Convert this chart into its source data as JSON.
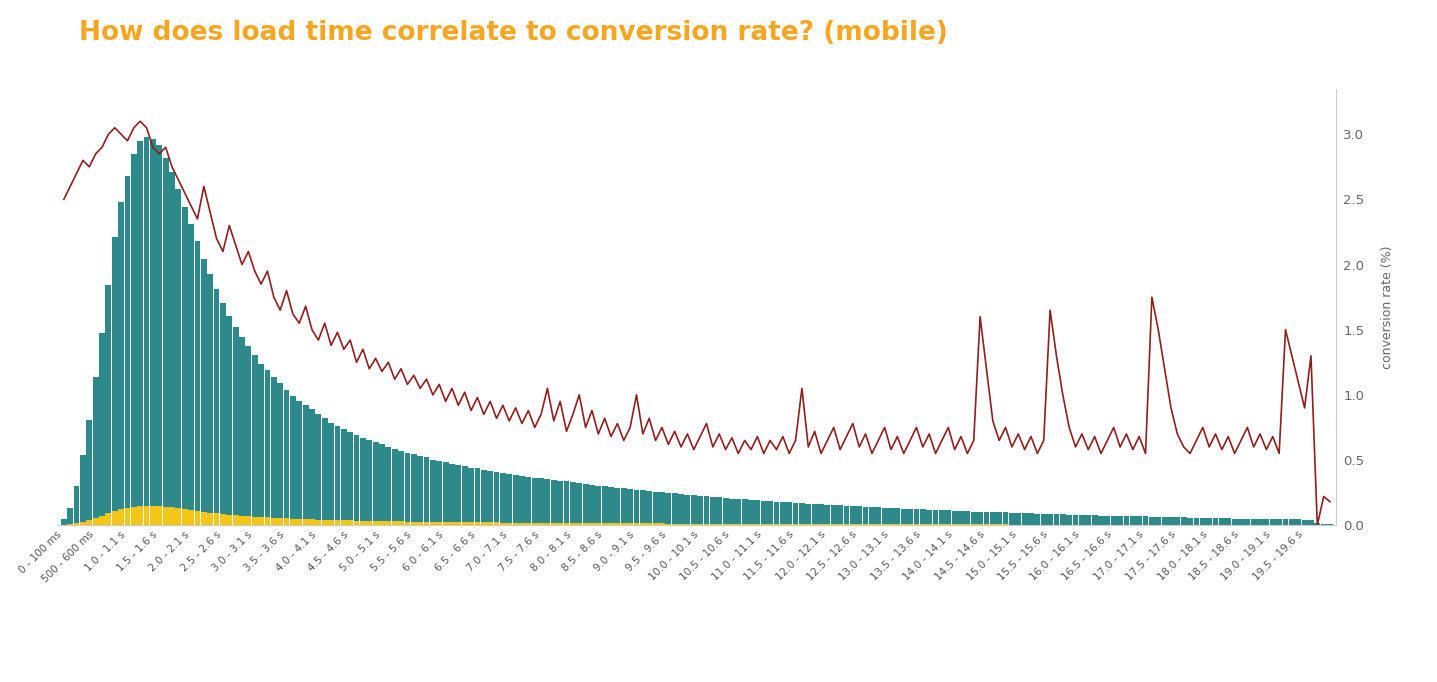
{
  "title": "How does load time correlate to conversion rate? (mobile)",
  "title_color": "#F5A623",
  "bar_color_teal": "#2E8A8A",
  "bar_color_yellow": "#F5C518",
  "line_color": "#8B2020",
  "ylabel_right": "conversion rate (%)",
  "background_color": "#ffffff",
  "ylim_bars": [
    0,
    100
  ],
  "ylim_conv": [
    0,
    3.35
  ],
  "yticks_conv": [
    0,
    0.5,
    1.0,
    1.5,
    2.0,
    2.5,
    3.0
  ],
  "bar_heights_teal": [
    1.5,
    4.0,
    9.0,
    16.0,
    24.0,
    34.0,
    44.0,
    55.0,
    66.0,
    74.0,
    80.0,
    85.0,
    88.0,
    89.0,
    88.5,
    87.0,
    84.0,
    81.0,
    77.0,
    73.0,
    69.0,
    65.0,
    61.0,
    57.5,
    54.0,
    51.0,
    48.0,
    45.5,
    43.0,
    41.0,
    39.0,
    37.0,
    35.5,
    34.0,
    32.5,
    31.0,
    29.5,
    28.5,
    27.5,
    26.5,
    25.5,
    24.5,
    23.5,
    22.8,
    22.0,
    21.3,
    20.7,
    20.0,
    19.5,
    19.0,
    18.5,
    18.0,
    17.5,
    17.0,
    16.5,
    16.2,
    15.8,
    15.5,
    15.0,
    14.7,
    14.4,
    14.1,
    13.8,
    13.5,
    13.2,
    13.0,
    12.7,
    12.5,
    12.2,
    12.0,
    11.8,
    11.5,
    11.3,
    11.1,
    10.9,
    10.7,
    10.5,
    10.3,
    10.1,
    10.0,
    9.8,
    9.6,
    9.4,
    9.2,
    9.0,
    8.9,
    8.7,
    8.6,
    8.4,
    8.3,
    8.1,
    8.0,
    7.8,
    7.7,
    7.5,
    7.4,
    7.3,
    7.1,
    7.0,
    6.9,
    6.7,
    6.6,
    6.5,
    6.4,
    6.3,
    6.1,
    6.0,
    5.9,
    5.8,
    5.7,
    5.6,
    5.5,
    5.4,
    5.3,
    5.2,
    5.1,
    5.0,
    4.9,
    4.8,
    4.8,
    4.7,
    4.6,
    4.5,
    4.4,
    4.4,
    4.3,
    4.2,
    4.1,
    4.1,
    4.0,
    3.9,
    3.9,
    3.8,
    3.7,
    3.7,
    3.6,
    3.5,
    3.5,
    3.4,
    3.4,
    3.3,
    3.2,
    3.2,
    3.1,
    3.1,
    3.0,
    3.0,
    2.9,
    2.9,
    2.8,
    2.8,
    2.7,
    2.7,
    2.6,
    2.6,
    2.5,
    2.5,
    2.5,
    2.4,
    2.4,
    2.3,
    2.3,
    2.3,
    2.2,
    2.2,
    2.1,
    2.1,
    2.1,
    2.0,
    2.0,
    2.0,
    1.9,
    1.9,
    1.9,
    1.8,
    1.8,
    1.8,
    1.7,
    1.7,
    1.7,
    1.7,
    1.6,
    1.6,
    1.6,
    1.5,
    1.5,
    1.5,
    1.5,
    1.4,
    1.4,
    1.4,
    1.4,
    1.3,
    1.3,
    1.3,
    1.2,
    1.2,
    0.5,
    0.3,
    0.2
  ],
  "bar_heights_yellow": [
    0.08,
    0.2,
    0.45,
    0.8,
    1.2,
    1.7,
    2.2,
    2.75,
    3.3,
    3.7,
    4.0,
    4.25,
    4.4,
    4.45,
    4.42,
    4.35,
    4.2,
    4.05,
    3.85,
    3.65,
    3.45,
    3.25,
    3.05,
    2.88,
    2.7,
    2.55,
    2.4,
    2.28,
    2.15,
    2.05,
    1.95,
    1.85,
    1.78,
    1.7,
    1.63,
    1.55,
    1.48,
    1.43,
    1.38,
    1.33,
    1.28,
    1.23,
    1.18,
    1.14,
    1.1,
    1.07,
    1.04,
    1.0,
    0.98,
    0.95,
    0.93,
    0.9,
    0.88,
    0.85,
    0.83,
    0.81,
    0.79,
    0.78,
    0.75,
    0.74,
    0.72,
    0.71,
    0.69,
    0.68,
    0.66,
    0.65,
    0.64,
    0.63,
    0.61,
    0.6,
    0.59,
    0.58,
    0.57,
    0.56,
    0.55,
    0.54,
    0.53,
    0.52,
    0.51,
    0.5,
    0.49,
    0.48,
    0.47,
    0.46,
    0.45,
    0.45,
    0.44,
    0.43,
    0.42,
    0.42,
    0.41,
    0.4,
    0.39,
    0.39,
    0.38,
    0.37,
    0.37,
    0.36,
    0.35,
    0.35,
    0.34,
    0.33,
    0.33,
    0.32,
    0.32,
    0.31,
    0.3,
    0.3,
    0.29,
    0.29,
    0.28,
    0.28,
    0.27,
    0.27,
    0.26,
    0.26,
    0.25,
    0.25,
    0.24,
    0.24,
    0.24,
    0.23,
    0.23,
    0.22,
    0.22,
    0.22,
    0.21,
    0.21,
    0.21,
    0.2,
    0.2,
    0.2,
    0.19,
    0.19,
    0.19,
    0.18,
    0.18,
    0.18,
    0.17,
    0.17,
    0.17,
    0.16,
    0.16,
    0.16,
    0.16,
    0.15,
    0.15,
    0.15,
    0.15,
    0.14,
    0.14,
    0.14,
    0.14,
    0.13,
    0.13,
    0.13,
    0.13,
    0.13,
    0.12,
    0.12,
    0.12,
    0.12,
    0.12,
    0.11,
    0.11,
    0.11,
    0.11,
    0.11,
    0.1,
    0.1,
    0.1,
    0.1,
    0.1,
    0.1,
    0.09,
    0.09,
    0.09,
    0.09,
    0.09,
    0.09,
    0.09,
    0.08,
    0.08,
    0.08,
    0.08,
    0.08,
    0.08,
    0.08,
    0.07,
    0.07,
    0.07,
    0.07,
    0.07,
    0.07,
    0.07,
    0.06,
    0.06,
    0.03,
    0.02,
    0.01
  ],
  "conversion_rate": [
    2.5,
    2.6,
    2.7,
    2.8,
    2.75,
    2.85,
    2.9,
    3.0,
    3.05,
    3.0,
    2.95,
    3.05,
    3.1,
    3.05,
    2.9,
    2.85,
    2.9,
    2.75,
    2.65,
    2.55,
    2.45,
    2.35,
    2.6,
    2.4,
    2.2,
    2.1,
    2.3,
    2.15,
    2.0,
    2.1,
    1.95,
    1.85,
    1.95,
    1.75,
    1.65,
    1.8,
    1.62,
    1.55,
    1.68,
    1.5,
    1.42,
    1.55,
    1.38,
    1.48,
    1.35,
    1.42,
    1.25,
    1.35,
    1.2,
    1.28,
    1.18,
    1.25,
    1.12,
    1.2,
    1.08,
    1.15,
    1.05,
    1.12,
    1.0,
    1.08,
    0.95,
    1.05,
    0.92,
    1.02,
    0.88,
    0.98,
    0.85,
    0.95,
    0.82,
    0.92,
    0.8,
    0.9,
    0.78,
    0.88,
    0.75,
    0.85,
    1.05,
    0.8,
    0.95,
    0.72,
    0.85,
    1.0,
    0.75,
    0.88,
    0.7,
    0.82,
    0.68,
    0.78,
    0.65,
    0.75,
    1.0,
    0.7,
    0.82,
    0.65,
    0.75,
    0.62,
    0.72,
    0.6,
    0.7,
    0.58,
    0.68,
    0.78,
    0.6,
    0.7,
    0.58,
    0.67,
    0.55,
    0.65,
    0.58,
    0.68,
    0.55,
    0.65,
    0.58,
    0.68,
    0.55,
    0.65,
    1.05,
    0.6,
    0.72,
    0.55,
    0.65,
    0.75,
    0.58,
    0.68,
    0.78,
    0.6,
    0.7,
    0.55,
    0.65,
    0.75,
    0.58,
    0.68,
    0.55,
    0.65,
    0.75,
    0.6,
    0.7,
    0.55,
    0.65,
    0.75,
    0.58,
    0.68,
    0.55,
    0.65,
    1.6,
    1.2,
    0.8,
    0.65,
    0.75,
    0.6,
    0.7,
    0.58,
    0.68,
    0.55,
    0.65,
    1.65,
    1.3,
    1.0,
    0.75,
    0.6,
    0.7,
    0.58,
    0.68,
    0.55,
    0.65,
    0.75,
    0.6,
    0.7,
    0.58,
    0.68,
    0.55,
    1.75,
    1.5,
    1.2,
    0.9,
    0.7,
    0.6,
    0.55,
    0.65,
    0.75,
    0.6,
    0.7,
    0.58,
    0.68,
    0.55,
    0.65,
    0.75,
    0.6,
    0.7,
    0.58,
    0.68,
    0.55,
    1.5,
    1.3,
    1.1,
    0.9,
    1.3,
    0.0,
    0.22,
    0.18
  ],
  "n_bars": 200,
  "categories_sparse": [
    "0 - 100 ms",
    "500 - 600 ms",
    "1.0 - 1.1 s",
    "1.5 - 1.6 s",
    "2.0 - 2.1 s",
    "2.5 - 2.6 s",
    "3.0 - 3.1 s",
    "3.5 - 3.6 s",
    "4.0 - 4.1 s",
    "4.5 - 4.6 s",
    "5.0 - 5.1 s",
    "5.5 - 5.6 s",
    "6.0 - 6.1 s",
    "6.5 - 6.6 s",
    "7.0 - 7.1 s",
    "7.5 - 7.6 s",
    "8.0 - 8.1 s",
    "8.5 - 8.6 s",
    "9.0 - 9.1 s",
    "9.5 - 9.6 s",
    "10.0 - 10.1 s",
    "10.5 - 10.6 s",
    "11.0 - 11.1 s",
    "11.5 - 11.6 s",
    "12.0 - 12.1 s",
    "12.5 - 12.6 s",
    "13.0 - 13.1 s",
    "13.5 - 13.6 s",
    "14.0 - 14.1 s",
    "14.5 - 14.6 s",
    "15.0 - 15.1 s",
    "15.5 - 15.6 s",
    "16.0 - 16.1 s",
    "16.5 - 16.6 s",
    "17.0 - 17.1 s",
    "17.5 - 17.6 s",
    "18.0 - 18.1 s",
    "18.5 - 18.6 s",
    "19.0 - 19.1 s",
    "19.5 - 19.6 s"
  ]
}
